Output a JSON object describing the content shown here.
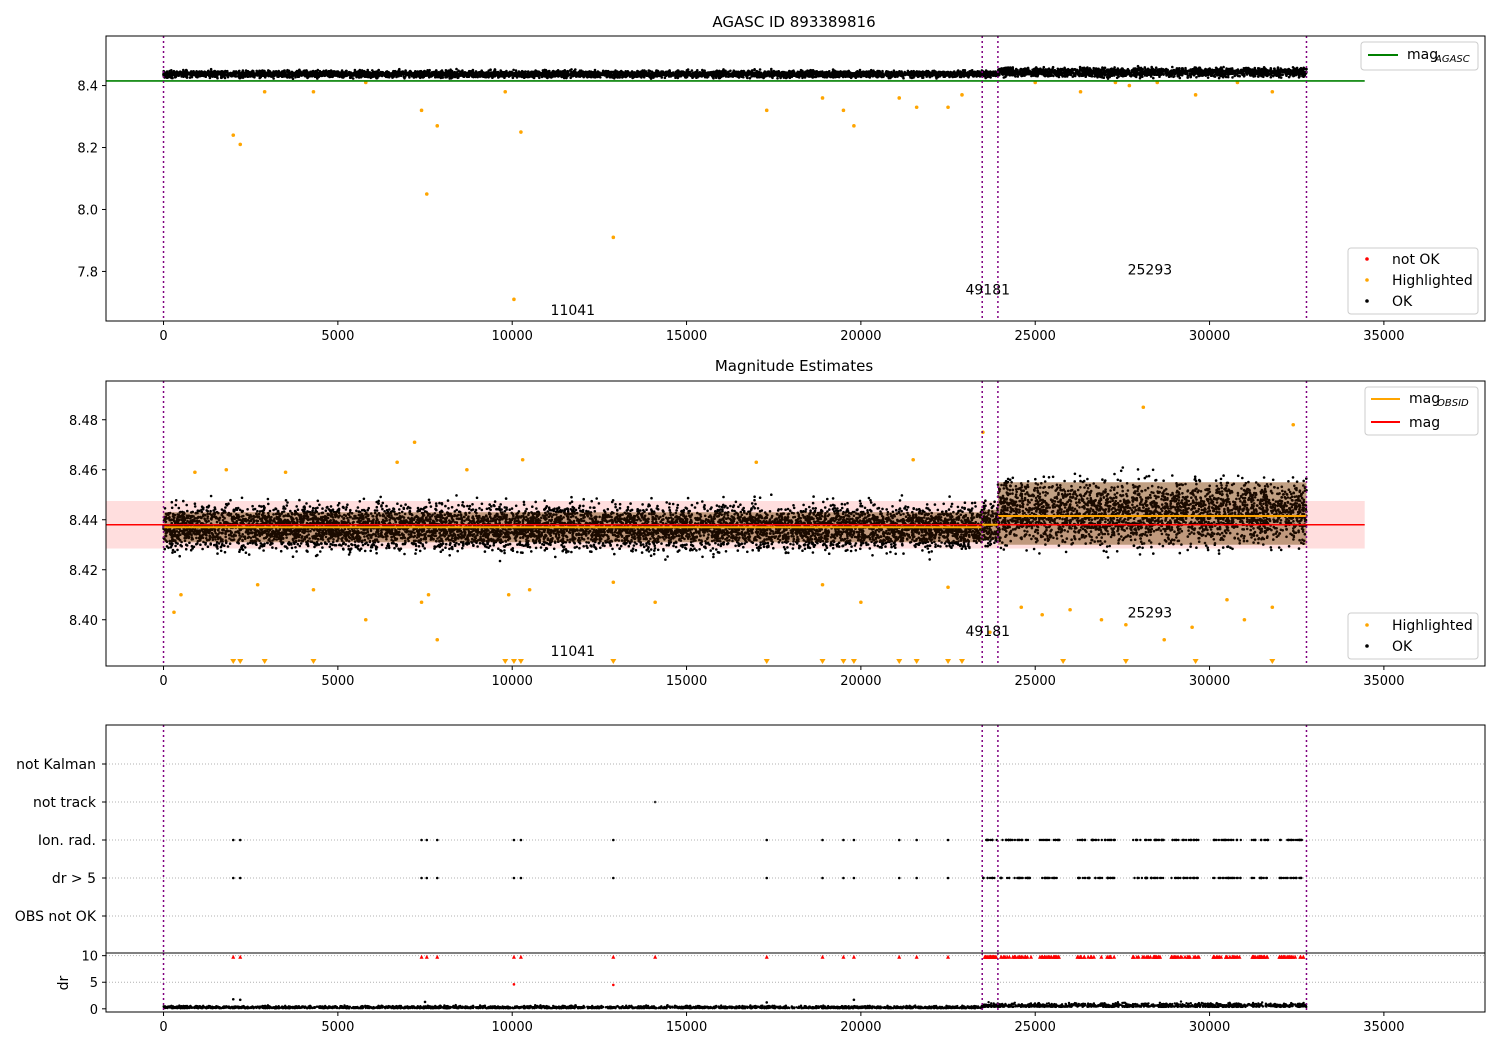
{
  "chart_data": [
    {
      "type": "scatter",
      "title": "AGASC ID 893389816",
      "xlim": [
        -1650,
        37900
      ],
      "ylim": [
        7.64,
        8.56
      ],
      "x_ticks": [
        0,
        5000,
        10000,
        15000,
        20000,
        25000,
        30000,
        35000
      ],
      "x_tick_labels": [
        "0",
        "5000",
        "10000",
        "15000",
        "20000",
        "25000",
        "30000",
        "35000"
      ],
      "y_ticks": [
        7.8,
        8.0,
        8.2,
        8.4
      ],
      "y_tick_labels": [
        "7.8",
        "8.0",
        "8.2",
        "8.4"
      ],
      "obs_boundaries": [
        0,
        23480,
        23930,
        32780
      ],
      "obs_labels": [
        {
          "text": "11041",
          "x": 11100,
          "y": 7.66
        },
        {
          "text": "49181",
          "x": 23000,
          "y": 7.725
        },
        {
          "text": "25293",
          "x": 27650,
          "y": 7.79
        }
      ],
      "series": [
        {
          "name": "mag",
          "subscript": "AGASC",
          "kind": "line",
          "color": "#008000",
          "x": [
            -1650,
            34450
          ],
          "y": [
            8.415,
            8.415
          ]
        },
        {
          "name": "not OK",
          "kind": "points",
          "color": "#ff0000",
          "x": [],
          "y": []
        },
        {
          "name": "Highlighted",
          "kind": "points",
          "color": "#ffa500",
          "x": [
            2000,
            2200,
            2900,
            4300,
            5800,
            7400,
            7550,
            7850,
            9800,
            10050,
            10250,
            12900,
            17300,
            18900,
            19500,
            19800,
            21100,
            21600,
            22500,
            22900,
            25000,
            26300,
            27300,
            27700,
            28500,
            29600,
            30800,
            31800
          ],
          "y": [
            8.24,
            8.21,
            8.38,
            8.38,
            8.41,
            8.32,
            8.05,
            8.27,
            8.38,
            7.71,
            8.25,
            7.91,
            8.32,
            8.36,
            8.32,
            8.27,
            8.36,
            8.33,
            8.33,
            8.37,
            8.41,
            8.38,
            8.41,
            8.4,
            8.41,
            8.37,
            8.41,
            8.38
          ]
        },
        {
          "name": "OK",
          "kind": "band",
          "color": "#000000",
          "segments": [
            {
              "x0": 0,
              "x1": 23480,
              "mean": 8.437,
              "spread": 0.012
            },
            {
              "x0": 23480,
              "x1": 23930,
              "mean": 8.438,
              "spread": 0.012
            },
            {
              "x0": 23930,
              "x1": 32780,
              "mean": 8.443,
              "spread": 0.016
            }
          ]
        }
      ],
      "legends": [
        {
          "position": "upper right",
          "entries": [
            {
              "label": "mag",
              "sub": "AGASC",
              "color": "#008000",
              "marker": "line"
            }
          ]
        },
        {
          "position": "lower right",
          "entries": [
            {
              "label": "not OK",
              "color": "#ff0000",
              "marker": "dot"
            },
            {
              "label": "Highlighted",
              "color": "#ffa500",
              "marker": "dot"
            },
            {
              "label": "OK",
              "color": "#000000",
              "marker": "dot"
            }
          ]
        }
      ]
    },
    {
      "type": "scatter",
      "title": "Magnitude Estimates",
      "xlim": [
        -1650,
        37900
      ],
      "ylim": [
        8.3815,
        8.4955
      ],
      "x_ticks": [
        0,
        5000,
        10000,
        15000,
        20000,
        25000,
        30000,
        35000
      ],
      "x_tick_labels": [
        "0",
        "5000",
        "10000",
        "15000",
        "20000",
        "25000",
        "30000",
        "35000"
      ],
      "y_ticks": [
        8.4,
        8.42,
        8.44,
        8.46,
        8.48
      ],
      "y_tick_labels": [
        "8.40",
        "8.42",
        "8.44",
        "8.46",
        "8.48"
      ],
      "obs_boundaries": [
        0,
        23480,
        23930,
        32780
      ],
      "obs_labels": [
        {
          "text": "11041",
          "x": 11100,
          "y": 8.3855
        },
        {
          "text": "49181",
          "x": 23000,
          "y": 8.3935
        },
        {
          "text": "25293",
          "x": 27650,
          "y": 8.401
        }
      ],
      "mag": {
        "value": 8.438,
        "band": [
          8.4285,
          8.4475
        ],
        "x0": -1650,
        "x1": 34450,
        "color": "#ff0000",
        "band_color": "#ffdede"
      },
      "mag_obsid": [
        {
          "x0": 0,
          "x1": 23480,
          "value": 8.437,
          "band": [
            8.431,
            8.443
          ]
        },
        {
          "x0": 23480,
          "x1": 23930,
          "value": 8.438,
          "band": [
            8.432,
            8.444
          ]
        },
        {
          "x0": 23930,
          "x1": 32780,
          "value": 8.4415,
          "band": [
            8.43,
            8.455
          ]
        }
      ],
      "mag_obsid_color": "#ffa500",
      "ok_segments": [
        {
          "x0": 0,
          "x1": 23480,
          "mean": 8.437,
          "spread": 0.0095
        },
        {
          "x0": 23480,
          "x1": 23930,
          "mean": 8.438,
          "spread": 0.01
        },
        {
          "x0": 23930,
          "x1": 32780,
          "mean": 8.443,
          "spread": 0.014
        }
      ],
      "highlighted_points": {
        "x": [
          300,
          500,
          900,
          1800,
          2700,
          3500,
          4300,
          5800,
          6700,
          7200,
          7400,
          7600,
          7850,
          8700,
          9900,
          10300,
          10500,
          12900,
          14100,
          17000,
          18900,
          20000,
          21500,
          22500,
          23500,
          23700,
          24600,
          25200,
          26000,
          26900,
          27600,
          28100,
          28700,
          29500,
          30500,
          31000,
          31800,
          32400
        ],
        "y": [
          8.403,
          8.41,
          8.459,
          8.46,
          8.414,
          8.459,
          8.412,
          8.4,
          8.463,
          8.471,
          8.407,
          8.41,
          8.392,
          8.46,
          8.41,
          8.464,
          8.412,
          8.415,
          8.407,
          8.463,
          8.414,
          8.407,
          8.464,
          8.413,
          8.475,
          8.395,
          8.405,
          8.402,
          8.404,
          8.4,
          8.398,
          8.485,
          8.392,
          8.397,
          8.408,
          8.4,
          8.405,
          8.478
        ]
      },
      "offscale_markers_x": [
        2000,
        2200,
        2900,
        4300,
        9800,
        10050,
        10250,
        12900,
        17300,
        18900,
        19500,
        19800,
        21100,
        21600,
        22500,
        22900,
        25800,
        27600,
        29600,
        31800
      ],
      "legends": [
        {
          "position": "upper right",
          "entries": [
            {
              "label": "mag",
              "sub": "OBSID",
              "color": "#ffa500",
              "marker": "line"
            },
            {
              "label": "mag",
              "color": "#ff0000",
              "marker": "line"
            }
          ]
        },
        {
          "position": "lower right",
          "entries": [
            {
              "label": "Highlighted",
              "color": "#ffa500",
              "marker": "dot"
            },
            {
              "label": "OK",
              "color": "#000000",
              "marker": "dot"
            }
          ]
        }
      ]
    },
    {
      "type": "scatter",
      "title": "",
      "xlim": [
        -1650,
        37900
      ],
      "categories": [
        "not Kalman",
        "not track",
        "Ion. rad.",
        "dr > 5",
        "OBS not OK"
      ],
      "obs_boundaries": [
        0,
        23480,
        23930,
        32780
      ],
      "flag_points": {
        "not track": [
          14100
        ],
        "Ion. rad.": [
          2000,
          2200,
          7400,
          7550,
          7850,
          10050,
          10250,
          12900,
          17300,
          18900,
          19500,
          19800,
          21100,
          21600,
          22500
        ],
        "dr > 5": [
          2000,
          2200,
          7400,
          7550,
          7850,
          10050,
          10250,
          12900,
          17300,
          18900,
          19500,
          19800,
          21100,
          21600,
          22500
        ]
      },
      "dense_flag_ranges": [
        [
          23500,
          23900
        ],
        [
          24000,
          24900
        ],
        [
          25100,
          25700
        ],
        [
          26200,
          27300
        ],
        [
          27800,
          28700
        ],
        [
          28900,
          29700
        ],
        [
          30100,
          30900
        ],
        [
          31200,
          31700
        ],
        [
          32000,
          32700
        ]
      ]
    },
    {
      "type": "scatter",
      "title": "",
      "ylabel": "dr",
      "xlim": [
        -1650,
        37900
      ],
      "ylim": [
        -0.6,
        10.5
      ],
      "x_ticks": [
        0,
        5000,
        10000,
        15000,
        20000,
        25000,
        30000,
        35000
      ],
      "x_tick_labels": [
        "0",
        "5000",
        "10000",
        "15000",
        "20000",
        "25000",
        "30000",
        "35000"
      ],
      "y_ticks": [
        0,
        5,
        10
      ],
      "y_tick_labels": [
        "0",
        "5",
        "10"
      ],
      "obs_boundaries": [
        0,
        23480,
        23930,
        32780
      ],
      "capped_red_x": [
        2000,
        2200,
        7400,
        7550,
        7850,
        10050,
        10250,
        12900,
        14100,
        17300,
        18900,
        19500,
        19800,
        21100,
        21600,
        22500
      ],
      "red_points": [
        {
          "x": 10050,
          "y": 4.6
        },
        {
          "x": 12900,
          "y": 4.5
        }
      ],
      "black_points": [
        {
          "x": 2000,
          "y": 1.8
        },
        {
          "x": 2200,
          "y": 1.7
        },
        {
          "x": 7500,
          "y": 1.3
        },
        {
          "x": 19800,
          "y": 1.7
        },
        {
          "x": 17300,
          "y": 1.2
        }
      ]
    }
  ]
}
